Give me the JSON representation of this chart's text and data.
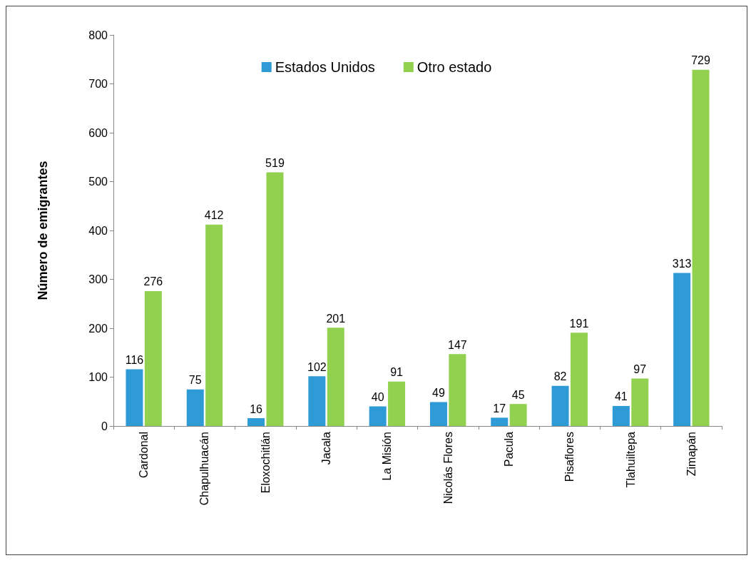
{
  "chart_data": {
    "type": "bar",
    "ylabel": "Número de emigrantes",
    "categories": [
      "Cardonal",
      "Chapulhuacán",
      "Eloxochitlán",
      "Jacala",
      "La Misión",
      "Nicolás Flores",
      "Pacula",
      "Pisaflores",
      "Tlahuiltepa",
      "Zimapán"
    ],
    "series": [
      {
        "name": "Estados Unidos",
        "color": "#2e9bd6",
        "values": [
          116,
          75,
          16,
          102,
          40,
          49,
          17,
          82,
          41,
          313
        ]
      },
      {
        "name": "Otro estado",
        "color": "#92d050",
        "values": [
          276,
          412,
          519,
          201,
          91,
          147,
          45,
          191,
          97,
          729
        ]
      }
    ],
    "ylim": [
      0,
      800
    ],
    "yticks": [
      0,
      100,
      200,
      300,
      400,
      500,
      600,
      700,
      800
    ],
    "grid": false,
    "legend": "top",
    "data_labels": true
  }
}
